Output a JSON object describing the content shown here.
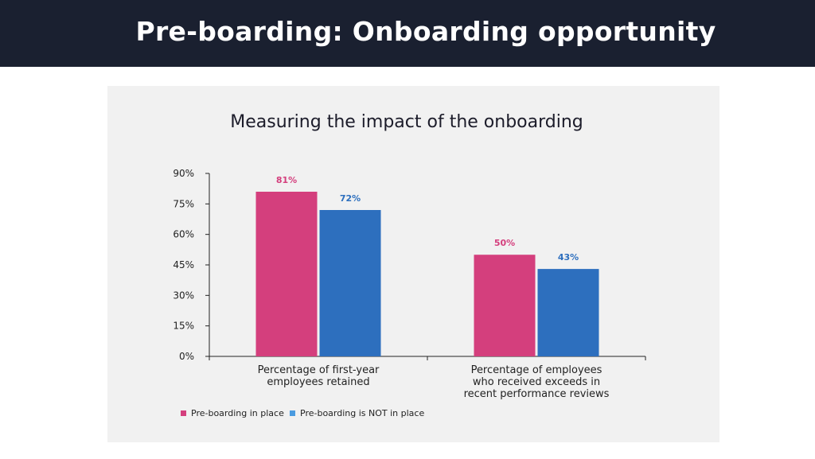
{
  "slide": {
    "title": "Pre-boarding: Onboarding opportunity"
  },
  "colors": {
    "header_bg": "#1a2030",
    "panel_bg": "#f1f1f1",
    "series_1": "#d43f7d",
    "series_2": "#2d6fbe",
    "legend_2": "#4a9be0"
  },
  "chart_data": {
    "type": "bar",
    "title": "Measuring the impact of the onboarding",
    "categories": [
      [
        "Percentage of first-year",
        "employees retained"
      ],
      [
        "Percentage of employees",
        "who received exceeds in",
        "recent performance reviews"
      ]
    ],
    "series": [
      {
        "name": "Pre-boarding in place",
        "values": [
          81,
          50
        ],
        "labels": [
          "81%",
          "50%"
        ]
      },
      {
        "name": "Pre-boarding is NOT in place",
        "values": [
          72,
          43
        ],
        "labels": [
          "72%",
          "43%"
        ]
      }
    ],
    "yticks": [
      "0%",
      "15%",
      "30%",
      "45%",
      "60%",
      "75%",
      "90%"
    ],
    "ylim": [
      0,
      90
    ],
    "xlabel": "",
    "ylabel": "",
    "legend": "bottom-left",
    "grid": false
  }
}
